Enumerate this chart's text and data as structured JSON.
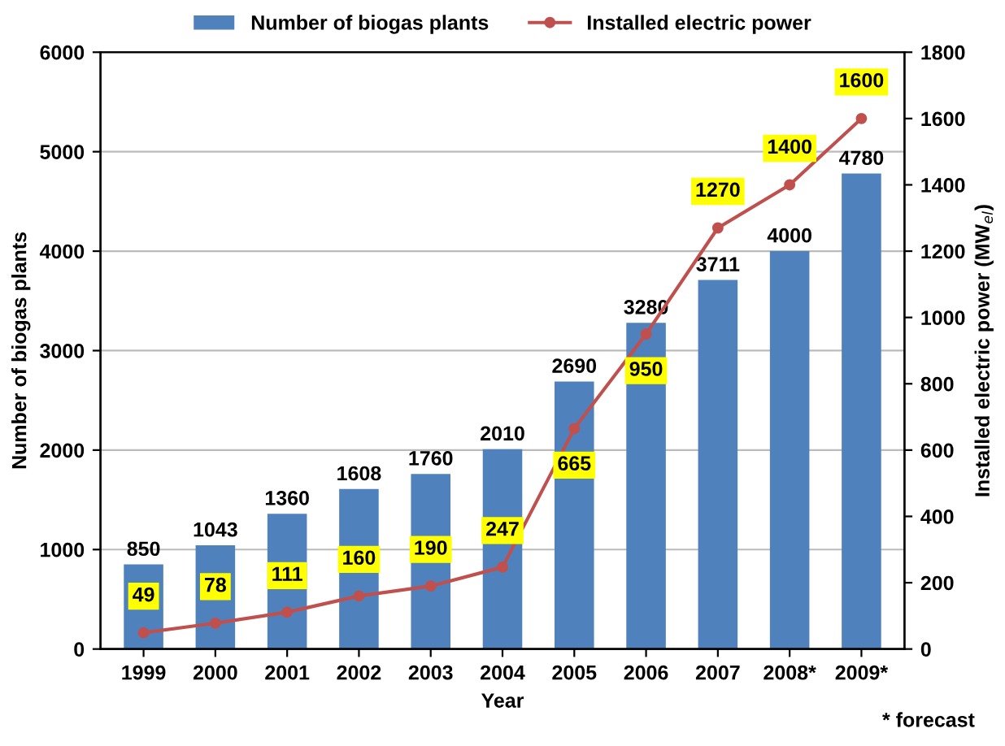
{
  "chart_data": {
    "type": "bar",
    "xlabel": "Year",
    "ylabel": "Number of biogas plants",
    "y2label": "Installed electric power (MW$_{el}$)",
    "categories": [
      "1999",
      "2000",
      "2001",
      "2002",
      "2003",
      "2004",
      "2005",
      "2006",
      "2007",
      "2008*",
      "2009*"
    ],
    "series": [
      {
        "name": "Number of biogas plants",
        "color": "#4f81bd",
        "values": [
          850,
          1043,
          1360,
          1608,
          1760,
          2010,
          2690,
          3280,
          3711,
          4000,
          4780
        ]
      },
      {
        "name": "Installed electric power",
        "type": "line",
        "axis": "y2",
        "color": "#c0504d",
        "marker": "circle",
        "values": [
          49,
          78,
          111,
          160,
          190,
          247,
          665,
          950,
          1270,
          1400,
          1600
        ]
      }
    ],
    "ylim": [
      0,
      6000
    ],
    "yticks": [
      0,
      1000,
      2000,
      3000,
      4000,
      5000,
      6000
    ],
    "y2lim": [
      0,
      1800
    ],
    "y2ticks": [
      0,
      200,
      400,
      600,
      800,
      1000,
      1200,
      1400,
      1600,
      1800
    ],
    "grid": "y",
    "legend": "top",
    "data_labels": true,
    "annotations": [
      "* forecast"
    ]
  }
}
